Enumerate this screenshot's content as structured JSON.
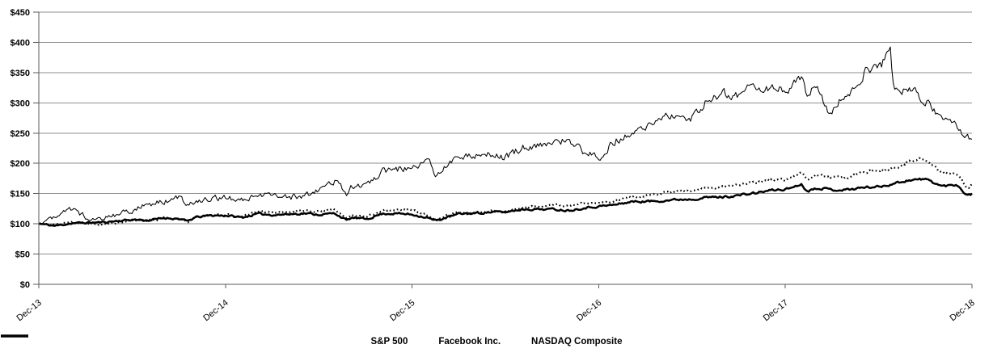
{
  "chart_data": {
    "type": "line",
    "title": "",
    "x_axis": {
      "tick_labels": [
        "Dec-13",
        "Dec-14",
        "Dec-15",
        "Dec-16",
        "Dec-17",
        "Dec-18"
      ],
      "min_years": 0,
      "max_years": 5
    },
    "y_axis": {
      "tick_labels": [
        "$0",
        "$50",
        "$100",
        "$150",
        "$200",
        "$250",
        "$300",
        "$350",
        "$400",
        "$450"
      ],
      "min": 0,
      "max": 450,
      "step": 50
    },
    "grid": "horizontal",
    "legend_position": "bottom",
    "colors": {
      "line": "#000000",
      "grid": "#8f8f8f",
      "axis": "#595959",
      "text": "#000000",
      "background": "#ffffff"
    },
    "series": [
      {
        "name": "S&P 500",
        "line_style": "solid-thick",
        "anchors": [
          [
            0,
            100
          ],
          [
            0.083,
            96.5
          ],
          [
            0.167,
            100.9
          ],
          [
            0.25,
            101.8
          ],
          [
            0.333,
            102.5
          ],
          [
            0.417,
            104.9
          ],
          [
            0.5,
            107.1
          ],
          [
            0.583,
            105.6
          ],
          [
            0.667,
            109.8
          ],
          [
            0.75,
            108.3
          ],
          [
            0.79,
            103.8
          ],
          [
            0.833,
            110.9
          ],
          [
            0.917,
            113.9
          ],
          [
            1,
            113.7
          ],
          [
            1.083,
            110.3
          ],
          [
            1.167,
            116.6
          ],
          [
            1.25,
            114.8
          ],
          [
            1.333,
            115.9
          ],
          [
            1.417,
            117.4
          ],
          [
            1.5,
            115.1
          ],
          [
            1.583,
            117.5
          ],
          [
            1.648,
            104.5
          ],
          [
            1.667,
            110.4
          ],
          [
            1.75,
            107.7
          ],
          [
            1.833,
            116.8
          ],
          [
            1.917,
            117.1
          ],
          [
            2,
            115.3
          ],
          [
            2.083,
            109.5
          ],
          [
            2.12,
            104.8
          ],
          [
            2.167,
            109.4
          ],
          [
            2.25,
            116.8
          ],
          [
            2.333,
            117.3
          ],
          [
            2.417,
            119.4
          ],
          [
            2.5,
            119.7
          ],
          [
            2.583,
            124.1
          ],
          [
            2.667,
            124.3
          ],
          [
            2.75,
            124.3
          ],
          [
            2.833,
            122
          ],
          [
            2.917,
            126.5
          ],
          [
            3,
            129.1
          ],
          [
            3.083,
            131.5
          ],
          [
            3.167,
            136.7
          ],
          [
            3.25,
            136.9
          ],
          [
            3.333,
            138.3
          ],
          [
            3.417,
            140.2
          ],
          [
            3.5,
            141.1
          ],
          [
            3.583,
            144
          ],
          [
            3.667,
            144.4
          ],
          [
            3.75,
            147.4
          ],
          [
            3.833,
            150.8
          ],
          [
            3.917,
            155.5
          ],
          [
            4,
            157.2
          ],
          [
            4.083,
            166.2
          ],
          [
            4.11,
            153.5
          ],
          [
            4.167,
            160.1
          ],
          [
            4.25,
            156
          ],
          [
            4.333,
            156.6
          ],
          [
            4.417,
            160.4
          ],
          [
            4.5,
            161.4
          ],
          [
            4.583,
            167.4
          ],
          [
            4.667,
            172.8
          ],
          [
            4.75,
            173.8
          ],
          [
            4.833,
            161.9
          ],
          [
            4.917,
            165.2
          ],
          [
            4.97,
            145.5
          ],
          [
            5,
            150.3
          ]
        ]
      },
      {
        "name": "Facebook Inc.",
        "line_style": "solid-thin",
        "anchors": [
          [
            0,
            100
          ],
          [
            0.083,
            114.5
          ],
          [
            0.167,
            125.3
          ],
          [
            0.25,
            110.2
          ],
          [
            0.333,
            109.4
          ],
          [
            0.417,
            115.8
          ],
          [
            0.5,
            123.1
          ],
          [
            0.583,
            132.9
          ],
          [
            0.667,
            136.9
          ],
          [
            0.75,
            144.6
          ],
          [
            0.79,
            133.5
          ],
          [
            0.833,
            137.2
          ],
          [
            0.917,
            142.2
          ],
          [
            1,
            142.8
          ],
          [
            1.083,
            138.9
          ],
          [
            1.167,
            144.5
          ],
          [
            1.25,
            150.4
          ],
          [
            1.333,
            144.1
          ],
          [
            1.417,
            144.9
          ],
          [
            1.5,
            156.9
          ],
          [
            1.583,
            172
          ],
          [
            1.648,
            148
          ],
          [
            1.667,
            163.6
          ],
          [
            1.75,
            164.5
          ],
          [
            1.833,
            186.6
          ],
          [
            1.917,
            190.7
          ],
          [
            2,
            191.4
          ],
          [
            2.083,
            205.3
          ],
          [
            2.12,
            181
          ],
          [
            2.167,
            195.6
          ],
          [
            2.25,
            208.8
          ],
          [
            2.333,
            215.1
          ],
          [
            2.417,
            217.4
          ],
          [
            2.5,
            209.1
          ],
          [
            2.583,
            226.8
          ],
          [
            2.667,
            230.8
          ],
          [
            2.75,
            234.7
          ],
          [
            2.833,
            239.7
          ],
          [
            2.917,
            216.7
          ],
          [
            3,
            210.4
          ],
          [
            3.083,
            238.5
          ],
          [
            3.167,
            248
          ],
          [
            3.25,
            259.9
          ],
          [
            3.333,
            274.9
          ],
          [
            3.417,
            277.1
          ],
          [
            3.5,
            276.3
          ],
          [
            3.583,
            309.7
          ],
          [
            3.667,
            314.7
          ],
          [
            3.75,
            312.7
          ],
          [
            3.833,
            329.5
          ],
          [
            3.917,
            324.2
          ],
          [
            4,
            322.8
          ],
          [
            4.083,
            342
          ],
          [
            4.11,
            316
          ],
          [
            4.167,
            326.3
          ],
          [
            4.23,
            279
          ],
          [
            4.25,
            292.4
          ],
          [
            4.333,
            314.7
          ],
          [
            4.417,
            350.9
          ],
          [
            4.5,
            355.6
          ],
          [
            4.56,
            399
          ],
          [
            4.572,
            325
          ],
          [
            4.583,
            315.8
          ],
          [
            4.667,
            321.6
          ],
          [
            4.75,
            300.9
          ],
          [
            4.833,
            277.7
          ],
          [
            4.917,
            257.3
          ],
          [
            5,
            239.9
          ]
        ]
      },
      {
        "name": "NASDAQ Composite",
        "line_style": "dotted",
        "anchors": [
          [
            0,
            100
          ],
          [
            0.083,
            98.3
          ],
          [
            0.167,
            103.3
          ],
          [
            0.25,
            100.7
          ],
          [
            0.333,
            98.7
          ],
          [
            0.417,
            101.8
          ],
          [
            0.5,
            105.7
          ],
          [
            0.583,
            104.8
          ],
          [
            0.667,
            110
          ],
          [
            0.75,
            107.9
          ],
          [
            0.79,
            102.5
          ],
          [
            0.833,
            111
          ],
          [
            0.917,
            114.7
          ],
          [
            1,
            114.6
          ],
          [
            1.083,
            112.2
          ],
          [
            1.167,
            120.2
          ],
          [
            1.25,
            118.8
          ],
          [
            1.333,
            119.9
          ],
          [
            1.417,
            122.5
          ],
          [
            1.5,
            120.5
          ],
          [
            1.583,
            123.9
          ],
          [
            1.648,
            107
          ],
          [
            1.667,
            115.3
          ],
          [
            1.75,
            111.5
          ],
          [
            1.833,
            121.5
          ],
          [
            1.917,
            122.9
          ],
          [
            2,
            122.8
          ],
          [
            2.083,
            113
          ],
          [
            2.12,
            106.5
          ],
          [
            2.167,
            112.2
          ],
          [
            2.25,
            119.9
          ],
          [
            2.333,
            117.6
          ],
          [
            2.417,
            122.1
          ],
          [
            2.5,
            119.5
          ],
          [
            2.583,
            127.2
          ],
          [
            2.667,
            128.5
          ],
          [
            2.75,
            130.9
          ],
          [
            2.833,
            129.7
          ],
          [
            2.917,
            133.1
          ],
          [
            3,
            133.2
          ],
          [
            3.083,
            139
          ],
          [
            3.167,
            144.3
          ],
          [
            3.25,
            146.4
          ],
          [
            3.333,
            150.2
          ],
          [
            3.417,
            154.1
          ],
          [
            3.5,
            153.7
          ],
          [
            3.583,
            159.2
          ],
          [
            3.667,
            162.2
          ],
          [
            3.75,
            163.1
          ],
          [
            3.833,
            168.9
          ],
          [
            3.917,
            172.5
          ],
          [
            4,
            172.1
          ],
          [
            4.083,
            184.9
          ],
          [
            4.11,
            172
          ],
          [
            4.167,
            181.6
          ],
          [
            4.25,
            176.6
          ],
          [
            4.333,
            176.7
          ],
          [
            4.417,
            186.3
          ],
          [
            4.5,
            188.1
          ],
          [
            4.583,
            192.3
          ],
          [
            4.667,
            203.5
          ],
          [
            4.72,
            208.5
          ],
          [
            4.75,
            202
          ],
          [
            4.833,
            183.5
          ],
          [
            4.917,
            184.2
          ],
          [
            4.97,
            158
          ],
          [
            5,
            165.8
          ]
        ]
      }
    ]
  }
}
